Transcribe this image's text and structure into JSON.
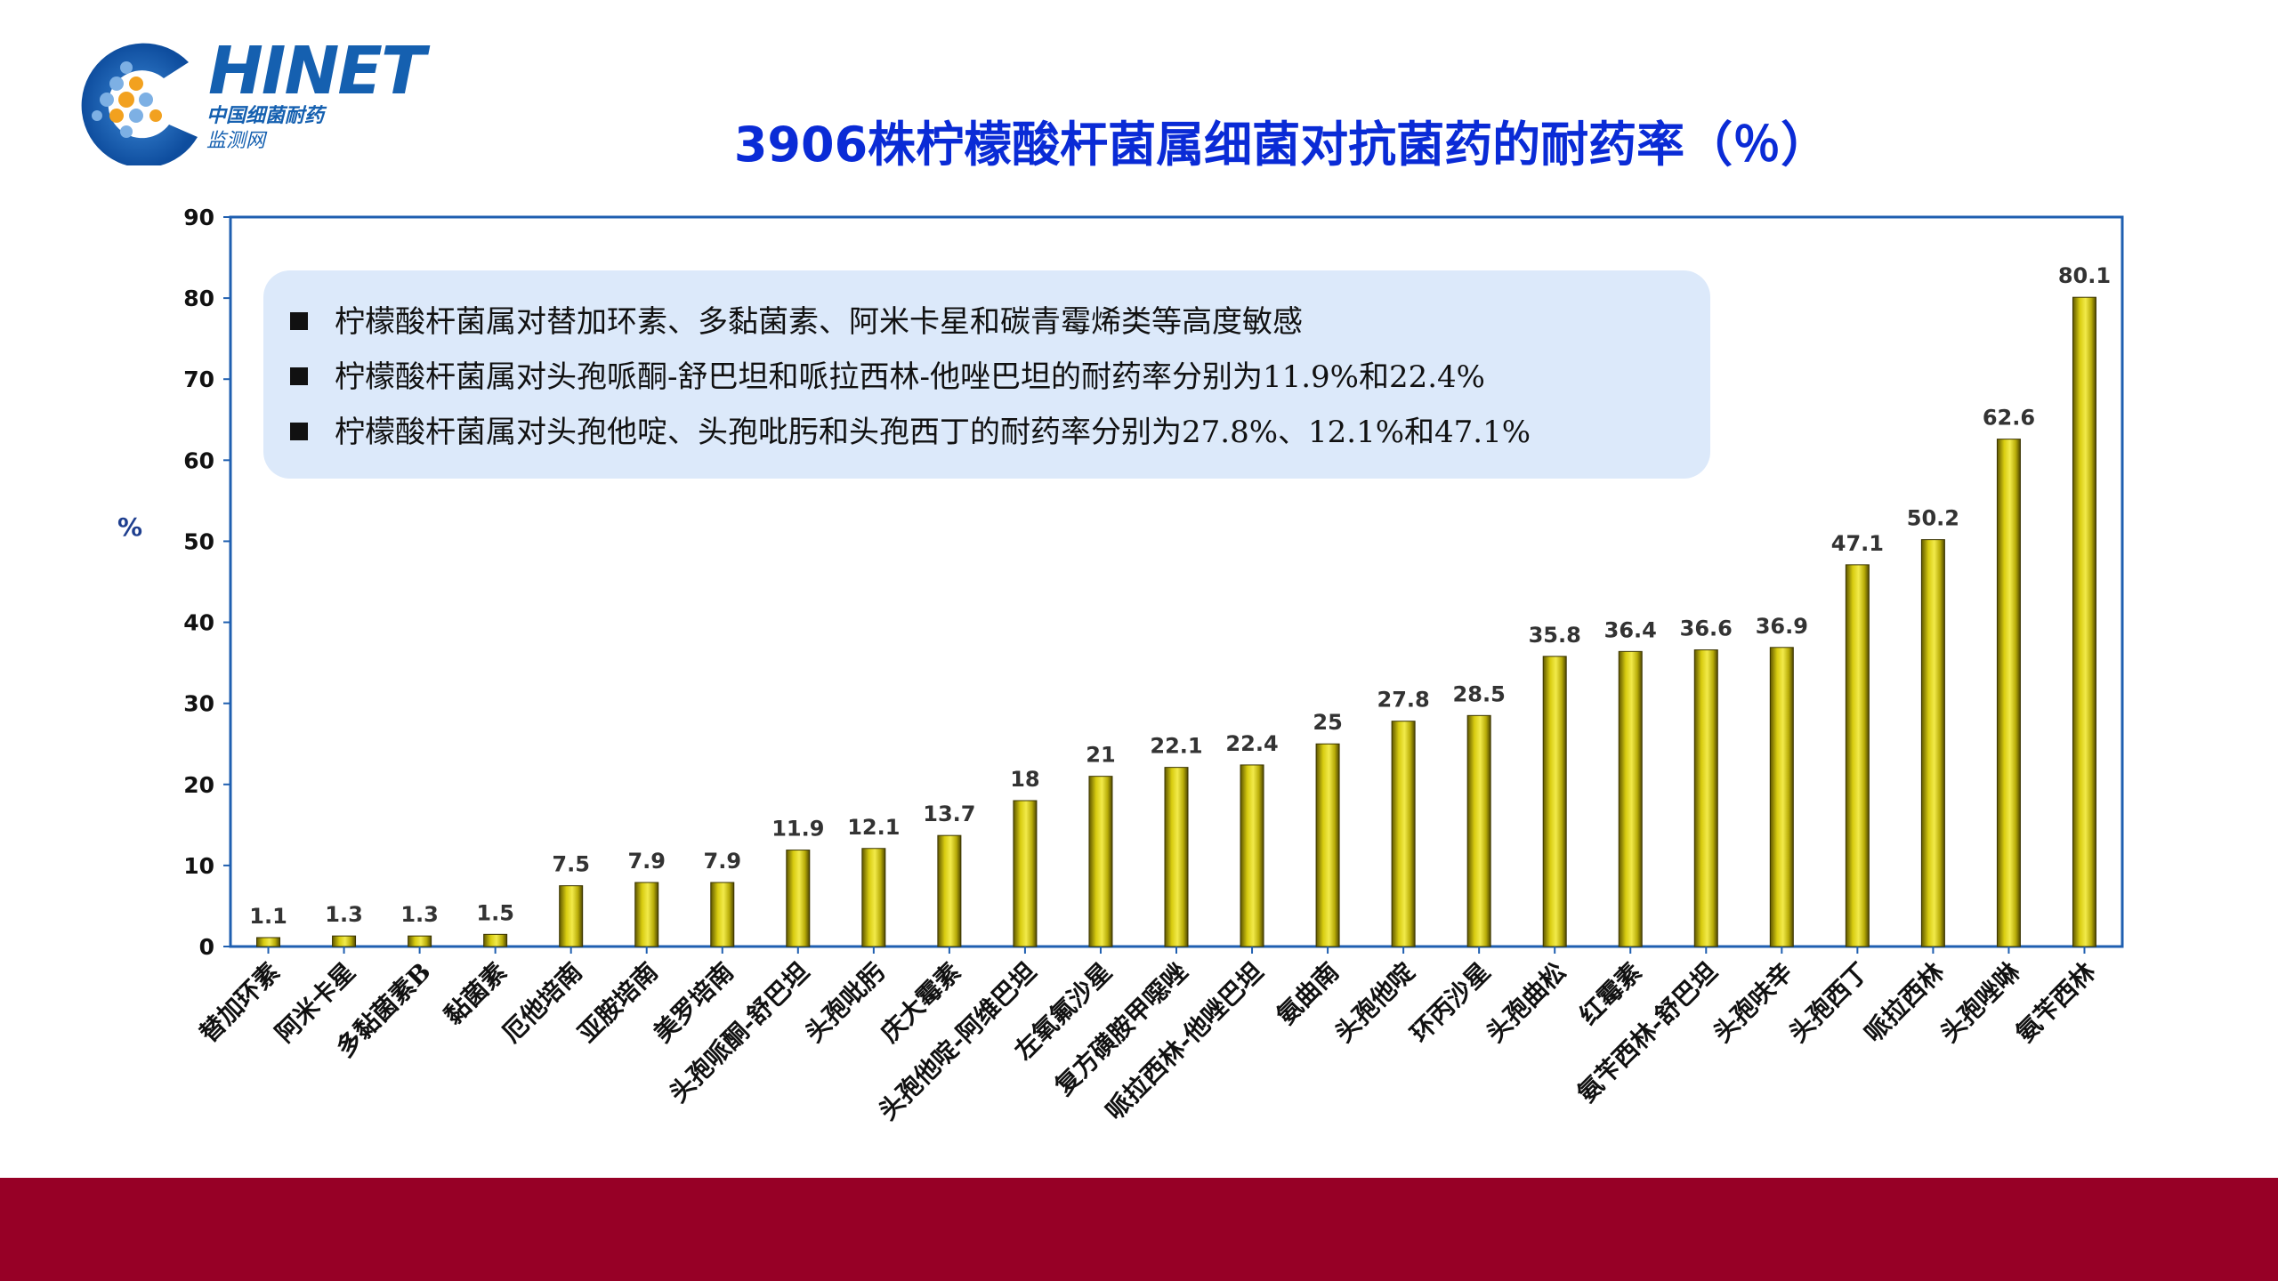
{
  "logo": {
    "main": "HINET",
    "sub1": "中国细菌耐药",
    "sub2": "监测网"
  },
  "title": "3906株柠檬酸杆菌属细菌对抗菌药的耐药率（％）",
  "notes": [
    "柠檬酸杆菌属对替加环素、多黏菌素、阿米卡星和碳青霉烯类等高度敏感",
    "柠檬酸杆菌属对头孢哌酮-舒巴坦和哌拉西林-他唑巴坦的耐药率分别为11.9%和22.4%",
    "柠檬酸杆菌属对头孢他啶、头孢吡肟和头孢西丁的耐药率分别为27.8%、12.1%和47.1%"
  ],
  "colors": {
    "bar": "#d8cc10",
    "bar_dark": "#6b6200",
    "axis_frame": "#1f5fb0",
    "title": "#0a2bd6",
    "band": "#970026"
  },
  "chart_data": {
    "type": "bar",
    "ylabel": "%",
    "ylim": [
      0,
      90
    ],
    "yticks": [
      0,
      10,
      20,
      30,
      40,
      50,
      60,
      70,
      80,
      90
    ],
    "grid": false,
    "categories": [
      "替加环素",
      "阿米卡星",
      "多黏菌素B",
      "黏菌素",
      "厄他培南",
      "亚胺培南",
      "美罗培南",
      "头孢哌酮-舒巴坦",
      "头孢吡肟",
      "庆大霉素",
      "头孢他啶-阿维巴坦",
      "左氧氟沙星",
      "复方磺胺甲噁唑",
      "哌拉西林-他唑巴坦",
      "氨曲南",
      "头孢他啶",
      "环丙沙星",
      "头孢曲松",
      "红霉素",
      "氨苄西林-舒巴坦",
      "头孢呋辛",
      "头孢西丁",
      "哌拉西林",
      "头孢唑啉",
      "氨苄西林"
    ],
    "values": [
      1.1,
      1.3,
      1.3,
      1.5,
      7.5,
      7.9,
      7.9,
      11.9,
      12.1,
      13.7,
      18,
      21,
      22.1,
      22.4,
      25,
      27.8,
      28.5,
      35.8,
      36.4,
      36.6,
      36.9,
      47.1,
      50.2,
      62.6,
      80.1
    ],
    "labels": [
      "1.1",
      "1.3",
      "1.3",
      "1.5",
      "7.5",
      "7.9",
      "7.9",
      "11.9",
      "12.1",
      "13.7",
      "18",
      "21",
      "22.1",
      "22.4",
      "25",
      "27.8",
      "28.5",
      "35.8",
      "36.4",
      "36.6",
      "36.9",
      "47.1",
      "50.2",
      "62.6",
      "80.1"
    ]
  }
}
